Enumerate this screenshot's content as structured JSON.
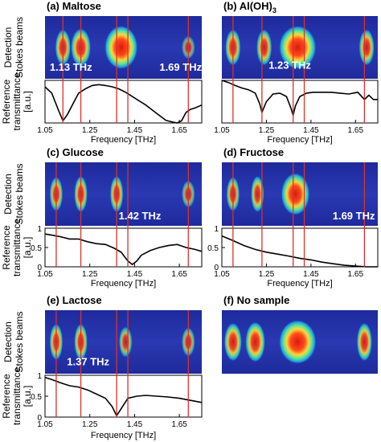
{
  "chart_data": [
    {
      "id": "a",
      "type": "line",
      "title": "(a) Maltose",
      "strip_label_1": "Detection",
      "strip_label_2": "Stokes beams",
      "plot_label_1": "Reference",
      "plot_label_2": "transmittance",
      "plot_label_3": "[a.u.]",
      "show_ylabel": true,
      "xlabel": "Frequency [THz]",
      "xticks": [
        "1.05",
        "1.25",
        "1.45",
        "1.65"
      ],
      "yticks": [],
      "xlim": [
        1.05,
        1.75
      ],
      "ylim": [
        0,
        1
      ],
      "markers": [
        1.13,
        1.21,
        1.37,
        1.42,
        1.69
      ],
      "annotations": [
        "1.13 THz",
        "1.69 THz"
      ],
      "beam_spots": [
        {
          "x": 1.13,
          "w": 0.035,
          "s": 0.8
        },
        {
          "x": 1.21,
          "w": 0.045,
          "s": 0.85
        },
        {
          "x": 1.39,
          "w": 0.075,
          "s": 1.0
        },
        {
          "x": 1.69,
          "w": 0.03,
          "s": 0.45
        }
      ],
      "x": [
        1.05,
        1.08,
        1.11,
        1.13,
        1.15,
        1.18,
        1.2,
        1.23,
        1.26,
        1.29,
        1.32,
        1.35,
        1.38,
        1.41,
        1.44,
        1.47,
        1.5,
        1.53,
        1.56,
        1.59,
        1.62,
        1.64,
        1.66,
        1.68,
        1.7,
        1.72,
        1.75
      ],
      "y": [
        0.85,
        0.7,
        0.3,
        0.05,
        0.2,
        0.5,
        0.7,
        0.8,
        0.88,
        0.9,
        0.88,
        0.85,
        0.8,
        0.72,
        0.62,
        0.52,
        0.42,
        0.3,
        0.18,
        0.06,
        0.02,
        0.0,
        0.05,
        0.25,
        0.32,
        0.35,
        0.42
      ]
    },
    {
      "id": "b",
      "type": "line",
      "title": "(b) Al(OH)",
      "title_sub": "3",
      "strip_label_1": "",
      "strip_label_2": "",
      "plot_label_1": "",
      "plot_label_2": "",
      "plot_label_3": "",
      "show_ylabel": false,
      "xlabel": "Frequency [THz]",
      "xticks": [
        "1.05",
        "1.25",
        "1.45",
        "1.65"
      ],
      "yticks": [],
      "xlim": [
        1.05,
        1.75
      ],
      "ylim": [
        0,
        1
      ],
      "markers": [
        1.1,
        1.23,
        1.37,
        1.42,
        1.69
      ],
      "annotations": [
        "1.23 THz"
      ],
      "beam_spots": [
        {
          "x": 1.1,
          "w": 0.035,
          "s": 0.8
        },
        {
          "x": 1.24,
          "w": 0.035,
          "s": 0.8
        },
        {
          "x": 1.39,
          "w": 0.085,
          "s": 1.0
        },
        {
          "x": 1.7,
          "w": 0.035,
          "s": 0.8
        }
      ],
      "x": [
        1.05,
        1.08,
        1.11,
        1.14,
        1.17,
        1.2,
        1.22,
        1.23,
        1.25,
        1.28,
        1.31,
        1.34,
        1.36,
        1.37,
        1.38,
        1.4,
        1.43,
        1.46,
        1.5,
        1.54,
        1.58,
        1.62,
        1.66,
        1.69,
        1.71,
        1.73,
        1.75
      ],
      "y": [
        1.0,
        0.95,
        0.88,
        0.82,
        0.78,
        0.7,
        0.45,
        0.25,
        0.5,
        0.68,
        0.7,
        0.62,
        0.35,
        0.18,
        0.4,
        0.62,
        0.7,
        0.72,
        0.72,
        0.72,
        0.7,
        0.68,
        0.72,
        0.55,
        0.65,
        0.55,
        0.55
      ]
    },
    {
      "id": "c",
      "type": "line",
      "title": "(c) Glucose",
      "strip_label_1": "Detection",
      "strip_label_2": "Stokes beams",
      "plot_label_1": "Reference",
      "plot_label_2": "transmittance",
      "plot_label_3": "[a.u.]",
      "show_ylabel": true,
      "xlabel": "Frequency [THz]",
      "xticks": [
        "1.05",
        "1.25",
        "1.45",
        "1.65"
      ],
      "yticks": [
        "1",
        "0.5",
        "0"
      ],
      "xlim": [
        1.05,
        1.75
      ],
      "ylim": [
        0,
        1
      ],
      "markers": [
        1.1,
        1.21,
        1.37,
        1.42,
        1.69
      ],
      "annotations": [
        "1.42 THz"
      ],
      "beam_spots": [
        {
          "x": 1.1,
          "w": 0.03,
          "s": 0.75
        },
        {
          "x": 1.21,
          "w": 0.03,
          "s": 0.8
        },
        {
          "x": 1.37,
          "w": 0.03,
          "s": 0.8
        },
        {
          "x": 1.69,
          "w": 0.03,
          "s": 0.55
        }
      ],
      "x": [
        1.05,
        1.08,
        1.12,
        1.16,
        1.2,
        1.24,
        1.28,
        1.32,
        1.36,
        1.39,
        1.42,
        1.44,
        1.46,
        1.48,
        1.52,
        1.56,
        1.6,
        1.64,
        1.68,
        1.72,
        1.75
      ],
      "y": [
        0.85,
        0.82,
        0.78,
        0.72,
        0.72,
        0.65,
        0.6,
        0.58,
        0.48,
        0.38,
        0.15,
        0.06,
        0.15,
        0.3,
        0.42,
        0.5,
        0.55,
        0.58,
        0.5,
        0.45,
        0.4
      ]
    },
    {
      "id": "d",
      "type": "line",
      "title": "(d) Fructose",
      "strip_label_1": "",
      "strip_label_2": "",
      "plot_label_1": "",
      "plot_label_2": "",
      "plot_label_3": "",
      "show_ylabel": false,
      "xlabel": "Frequency [THz]",
      "xticks": [
        "1.05",
        "1.25",
        "1.45",
        "1.65"
      ],
      "yticks": [
        "1",
        "0.5",
        "0"
      ],
      "xlim": [
        1.05,
        1.75
      ],
      "ylim": [
        0,
        1
      ],
      "markers": [
        1.1,
        1.23,
        1.37,
        1.42,
        1.69
      ],
      "annotations": [
        "1.69 THz"
      ],
      "beam_spots": [
        {
          "x": 1.1,
          "w": 0.03,
          "s": 0.75
        },
        {
          "x": 1.21,
          "w": 0.03,
          "s": 0.8
        },
        {
          "x": 1.38,
          "w": 0.065,
          "s": 0.95
        }
      ],
      "x": [
        1.05,
        1.1,
        1.15,
        1.2,
        1.25,
        1.3,
        1.35,
        1.4,
        1.45,
        1.5,
        1.55,
        1.6,
        1.65,
        1.7,
        1.75
      ],
      "y": [
        0.8,
        0.68,
        0.55,
        0.45,
        0.38,
        0.33,
        0.28,
        0.22,
        0.18,
        0.12,
        0.08,
        0.04,
        0.02,
        0.0,
        0.0
      ]
    },
    {
      "id": "e",
      "type": "line",
      "title": "(e) Lactose",
      "strip_label_1": "Detection",
      "strip_label_2": "Stokes beams",
      "plot_label_1": "Reference",
      "plot_label_2": "transmittance",
      "plot_label_3": "[a.u.]",
      "show_ylabel": true,
      "xlabel": "Frequency [THz]",
      "xticks": [
        "1.05",
        "1.25",
        "1.45",
        "1.65"
      ],
      "yticks": [
        "1",
        "0.5",
        "0"
      ],
      "xlim": [
        1.05,
        1.75
      ],
      "ylim": [
        0,
        1
      ],
      "markers": [
        1.1,
        1.21,
        1.37,
        1.42,
        1.69
      ],
      "annotations": [
        "1.37 THz"
      ],
      "beam_spots": [
        {
          "x": 1.1,
          "w": 0.03,
          "s": 0.8
        },
        {
          "x": 1.21,
          "w": 0.03,
          "s": 0.8
        },
        {
          "x": 1.41,
          "w": 0.03,
          "s": 0.65
        },
        {
          "x": 1.69,
          "w": 0.03,
          "s": 0.6
        }
      ],
      "x": [
        1.05,
        1.08,
        1.12,
        1.16,
        1.2,
        1.24,
        1.28,
        1.32,
        1.35,
        1.37,
        1.39,
        1.42,
        1.46,
        1.5,
        1.55,
        1.6,
        1.65,
        1.7,
        1.75
      ],
      "y": [
        0.95,
        0.9,
        0.82,
        0.75,
        0.72,
        0.65,
        0.55,
        0.45,
        0.25,
        0.03,
        0.2,
        0.45,
        0.5,
        0.52,
        0.5,
        0.48,
        0.45,
        0.4,
        0.35
      ]
    },
    {
      "id": "f",
      "type": "image",
      "title": "(f) No sample",
      "strip_label_1": "",
      "strip_label_2": "",
      "plot_label_1": "",
      "plot_label_2": "",
      "plot_label_3": "",
      "show_ylabel": false,
      "xlabel": "",
      "xticks": [],
      "yticks": [],
      "xlim": [
        1.05,
        1.75
      ],
      "ylim": [
        0,
        1
      ],
      "markers": [],
      "annotations": [],
      "beam_spots": [
        {
          "x": 1.1,
          "w": 0.04,
          "s": 0.85
        },
        {
          "x": 1.2,
          "w": 0.045,
          "s": 0.9
        },
        {
          "x": 1.39,
          "w": 0.085,
          "s": 1.0
        },
        {
          "x": 1.69,
          "w": 0.035,
          "s": 0.85
        }
      ],
      "x": [],
      "y": []
    }
  ],
  "colors": {
    "marker": "#d9322b",
    "background": "#2531a8",
    "line": "#000000"
  }
}
